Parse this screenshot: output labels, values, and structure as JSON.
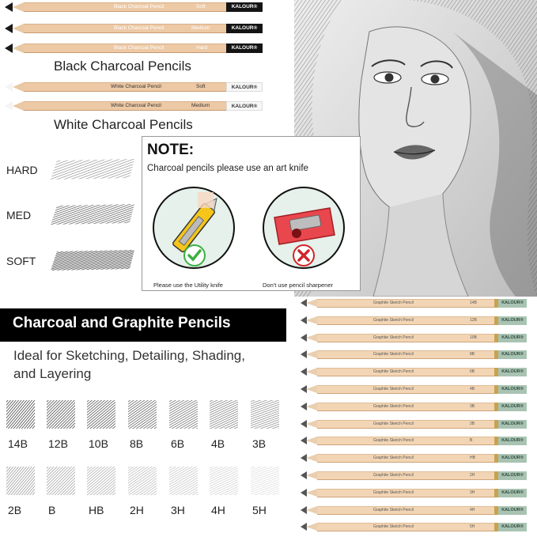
{
  "top_pencils": {
    "black": [
      {
        "name": "Black Charcoal Pencil",
        "grade": "Soft",
        "brand": "KALOUR®"
      },
      {
        "name": "Black Charcoal Pencil",
        "grade": "Medium",
        "brand": "KALOUR®"
      },
      {
        "name": "Black Charcoal Pencil",
        "grade": "Hard",
        "brand": "KALOUR®"
      }
    ],
    "black_caption": "Black Charcoal Pencils",
    "white": [
      {
        "name": "White Charcoal Pencil",
        "grade": "Soft",
        "brand": "KALOUR®"
      },
      {
        "name": "White Charcoal Pencil",
        "grade": "Medium",
        "brand": "KALOUR®"
      }
    ],
    "white_caption": "White Charcoal Pencils"
  },
  "strokes": [
    "HARD",
    "MED",
    "SOFT"
  ],
  "note": {
    "title": "NOTE:",
    "text": "Charcoal pencils please use an art knife",
    "left_caption": "Please use the Utility knife",
    "right_caption": "Don't use pencil sharpener"
  },
  "banner": {
    "title": "Charcoal and Graphite Pencils",
    "subtitle_line1": "Ideal for Sketching, Detailing, Shading,",
    "subtitle_line2": "and Layering"
  },
  "swatches": {
    "row1": [
      "14B",
      "12B",
      "10B",
      "8B",
      "6B",
      "4B",
      "3B"
    ],
    "row2": [
      "2B",
      "B",
      "HB",
      "2H",
      "3H",
      "4H",
      "5H"
    ]
  },
  "graphite_pencils": {
    "name": "Graphite Sketch Pencil",
    "brand": "KALOUR®",
    "grades": [
      "14B",
      "12B",
      "10B",
      "8B",
      "6B",
      "4B",
      "3B",
      "2B",
      "B",
      "HB",
      "2H",
      "3H",
      "4H",
      "5H"
    ]
  },
  "colors": {
    "wood": "#edc9a5",
    "black_cap": "#141414",
    "graphite_cap": "#a9c3b2",
    "check_green": "#3cb043",
    "cross_red": "#d0242a"
  }
}
